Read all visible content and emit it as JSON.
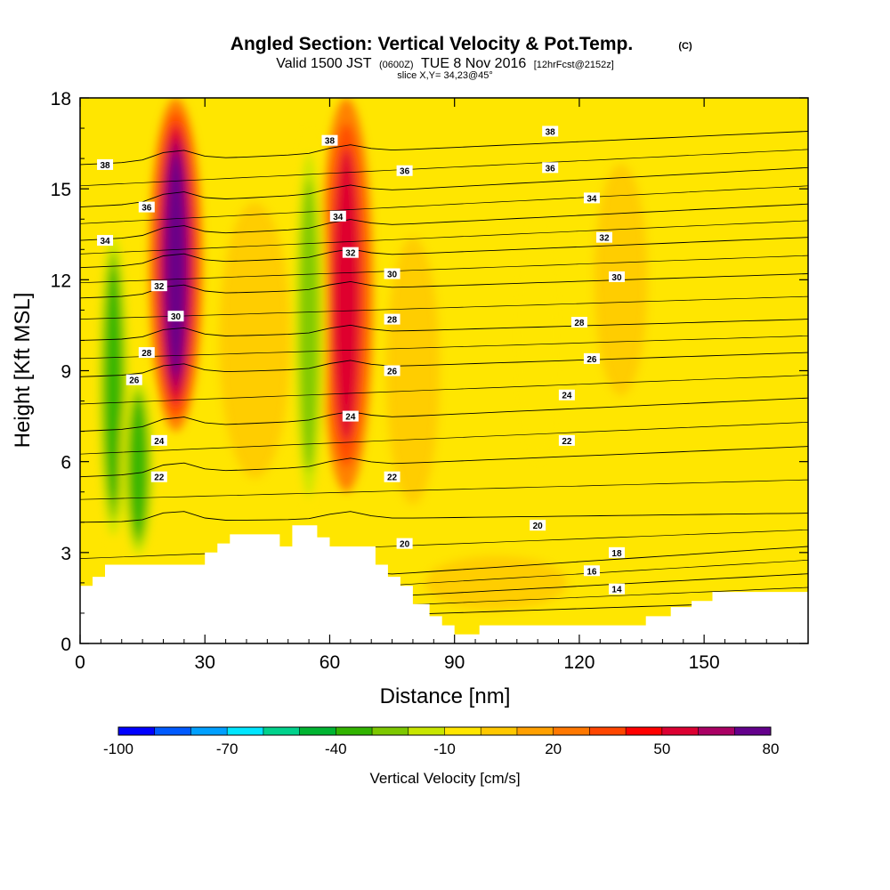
{
  "chart_data": {
    "type": "heatmap",
    "title": "Angled Section: Vertical Velocity & Pot.Temp.",
    "title_units": "(C)",
    "subtitle_main_a": "Valid 1500 JST",
    "subtitle_zulu": "(0600Z)",
    "subtitle_main_b": "TUE 8 Nov 2016",
    "subtitle_fcst": "[12hrFcst@2152z]",
    "slice_info": "slice X,Y= 34,23@45°",
    "xlabel": "Distance [nm]",
    "ylabel": "Height [Kft MSL]",
    "xlim": [
      0,
      175
    ],
    "ylim": [
      0,
      18
    ],
    "x_ticks": [
      0,
      30,
      60,
      90,
      120,
      150
    ],
    "y_ticks": [
      0,
      3,
      6,
      9,
      12,
      15,
      18
    ],
    "colorbar": {
      "label": "Vertical Velocity [cm/s]",
      "tick_labels": [
        "-100",
        "-70",
        "-40",
        "-10",
        "20",
        "50",
        "80"
      ],
      "tick_values": [
        -100,
        -70,
        -40,
        -10,
        20,
        50,
        80
      ],
      "colors": [
        "#0000ff",
        "#005aff",
        "#00a0ff",
        "#00e6ff",
        "#00d28c",
        "#00b432",
        "#32b400",
        "#7dc800",
        "#c8e600",
        "#ffe600",
        "#ffc800",
        "#ffa000",
        "#ff7800",
        "#ff4600",
        "#ff0000",
        "#dc0032",
        "#aa0064",
        "#64008c"
      ]
    },
    "velocity_features": [
      {
        "x": 23,
        "y_range": [
          7,
          18
        ],
        "peak": 80,
        "type": "updraft"
      },
      {
        "x": 64,
        "y_range": [
          5,
          18
        ],
        "peak": 45,
        "type": "updraft"
      },
      {
        "x": 8,
        "y_range": [
          3,
          14
        ],
        "peak": -40,
        "type": "downdraft"
      },
      {
        "x": 14,
        "y_range": [
          2.6,
          9
        ],
        "peak": -40,
        "type": "downdraft"
      },
      {
        "x": 55,
        "y_range": [
          4,
          17
        ],
        "peak": -30,
        "type": "downdraft"
      },
      {
        "x": 110,
        "y_range": [
          6,
          14
        ],
        "peak": -10,
        "type": "downdraft"
      }
    ],
    "theta_contours": [
      {
        "label": "14",
        "value": 14,
        "y_left": 0.6,
        "y_right": 1.4
      },
      {
        "label": "16",
        "value": 16,
        "y_left": 1.0,
        "y_right": 2.3
      },
      {
        "label": "18",
        "value": 18,
        "y_left": 1.6,
        "y_right": 3.2
      },
      {
        "label": "20",
        "value": 20,
        "y_left": 4.0,
        "y_right": 4.3
      },
      {
        "label": "22",
        "value": 22,
        "y_left": 5.5,
        "y_right": 6.5
      },
      {
        "label": "24",
        "value": 24,
        "y_left": 7.0,
        "y_right": 8.1
      },
      {
        "label": "26",
        "value": 26,
        "y_left": 8.8,
        "y_right": 9.6
      },
      {
        "label": "28",
        "value": 28,
        "y_left": 10.0,
        "y_right": 10.7
      },
      {
        "label": "30",
        "value": 30,
        "y_left": 11.4,
        "y_right": 12.2
      },
      {
        "label": "32",
        "value": 32,
        "y_left": 12.4,
        "y_right": 13.4
      },
      {
        "label": "34",
        "value": 34,
        "y_left": 13.3,
        "y_right": 14.5
      },
      {
        "label": "36",
        "value": 36,
        "y_left": 14.4,
        "y_right": 15.7
      },
      {
        "label": "38",
        "value": 38,
        "y_left": 15.8,
        "y_right": 16.9
      }
    ],
    "contour_labels": [
      {
        "text": "38",
        "x": 6,
        "y": 15.8
      },
      {
        "text": "36",
        "x": 16,
        "y": 14.4
      },
      {
        "text": "34",
        "x": 6,
        "y": 13.3
      },
      {
        "text": "32",
        "x": 19,
        "y": 11.8
      },
      {
        "text": "30",
        "x": 23,
        "y": 10.8
      },
      {
        "text": "28",
        "x": 16,
        "y": 9.6
      },
      {
        "text": "26",
        "x": 13,
        "y": 8.7
      },
      {
        "text": "24",
        "x": 19,
        "y": 6.7
      },
      {
        "text": "22",
        "x": 19,
        "y": 5.5
      },
      {
        "text": "38",
        "x": 60,
        "y": 16.6
      },
      {
        "text": "34",
        "x": 62,
        "y": 14.1
      },
      {
        "text": "32",
        "x": 65,
        "y": 12.9
      },
      {
        "text": "30",
        "x": 75,
        "y": 12.2
      },
      {
        "text": "28",
        "x": 75,
        "y": 10.7
      },
      {
        "text": "26",
        "x": 75,
        "y": 9.0
      },
      {
        "text": "24",
        "x": 65,
        "y": 7.5
      },
      {
        "text": "22",
        "x": 75,
        "y": 5.5
      },
      {
        "text": "20",
        "x": 78,
        "y": 3.3
      },
      {
        "text": "36",
        "x": 78,
        "y": 15.6
      },
      {
        "text": "38",
        "x": 113,
        "y": 16.9
      },
      {
        "text": "36",
        "x": 113,
        "y": 15.7
      },
      {
        "text": "34",
        "x": 123,
        "y": 14.7
      },
      {
        "text": "32",
        "x": 126,
        "y": 13.4
      },
      {
        "text": "30",
        "x": 129,
        "y": 12.1
      },
      {
        "text": "28",
        "x": 120,
        "y": 10.6
      },
      {
        "text": "26",
        "x": 123,
        "y": 9.4
      },
      {
        "text": "24",
        "x": 117,
        "y": 8.2
      },
      {
        "text": "22",
        "x": 117,
        "y": 6.7
      },
      {
        "text": "20",
        "x": 110,
        "y": 3.9
      },
      {
        "text": "18",
        "x": 129,
        "y": 3.0
      },
      {
        "text": "16",
        "x": 123,
        "y": 2.4
      },
      {
        "text": "14",
        "x": 129,
        "y": 1.8
      }
    ],
    "terrain": [
      [
        0,
        1.9
      ],
      [
        3,
        1.9
      ],
      [
        3,
        2.2
      ],
      [
        6,
        2.2
      ],
      [
        6,
        2.6
      ],
      [
        30,
        2.6
      ],
      [
        30,
        3.0
      ],
      [
        33,
        3.0
      ],
      [
        33,
        3.3
      ],
      [
        36,
        3.3
      ],
      [
        36,
        3.6
      ],
      [
        48,
        3.6
      ],
      [
        48,
        3.2
      ],
      [
        51,
        3.2
      ],
      [
        51,
        3.9
      ],
      [
        57,
        3.9
      ],
      [
        57,
        3.5
      ],
      [
        60,
        3.5
      ],
      [
        60,
        3.2
      ],
      [
        71,
        3.2
      ],
      [
        71,
        2.6
      ],
      [
        74,
        2.6
      ],
      [
        74,
        2.2
      ],
      [
        77,
        2.2
      ],
      [
        77,
        1.9
      ],
      [
        80,
        1.9
      ],
      [
        80,
        1.3
      ],
      [
        84,
        1.3
      ],
      [
        84,
        0.9
      ],
      [
        87,
        0.9
      ],
      [
        87,
        0.6
      ],
      [
        90,
        0.6
      ],
      [
        90,
        0.3
      ],
      [
        96,
        0.3
      ],
      [
        96,
        0.6
      ],
      [
        136,
        0.6
      ],
      [
        136,
        0.9
      ],
      [
        142,
        0.9
      ],
      [
        142,
        1.2
      ],
      [
        147,
        1.2
      ],
      [
        147,
        1.4
      ],
      [
        152,
        1.4
      ],
      [
        152,
        1.7
      ],
      [
        160,
        1.7
      ],
      [
        175,
        1.7
      ]
    ]
  }
}
